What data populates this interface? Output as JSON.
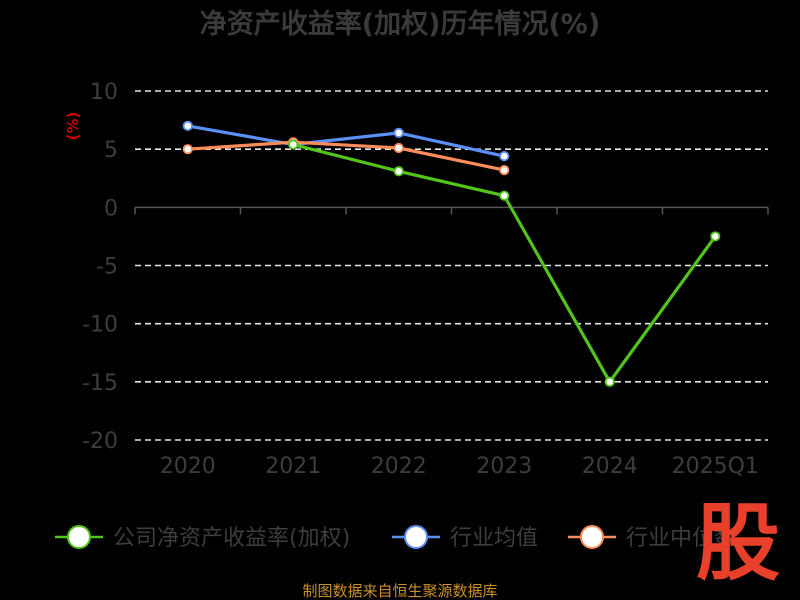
{
  "title": "净资产收益率(加权)历年情况(%)",
  "source": "制图数据来自恒生聚源数据库",
  "watermark": "股",
  "chart_data": {
    "type": "line",
    "title": "净资产收益率(加权)历年情况(%)",
    "ylabel": "(%)",
    "xlabel": "",
    "categories": [
      "2020",
      "2021",
      "2022",
      "2023",
      "2024",
      "2025Q1"
    ],
    "ylim": [
      -20,
      10
    ],
    "yticks": [
      10,
      5,
      0,
      -5,
      -10,
      -15,
      -20
    ],
    "grid": true,
    "legend_position": "bottom",
    "series": [
      {
        "name": "公司净资产收益率(加权)",
        "color": "#52c41a",
        "values": [
          null,
          5.4,
          3.1,
          1.0,
          -15.0,
          -2.5
        ]
      },
      {
        "name": "行业均值",
        "color": "#5b8ff9",
        "values": [
          7.0,
          5.4,
          6.4,
          4.4,
          null,
          null
        ]
      },
      {
        "name": "行业中位数",
        "color": "#ff8c5a",
        "values": [
          5.0,
          5.6,
          5.1,
          3.2,
          null,
          null
        ]
      }
    ]
  }
}
